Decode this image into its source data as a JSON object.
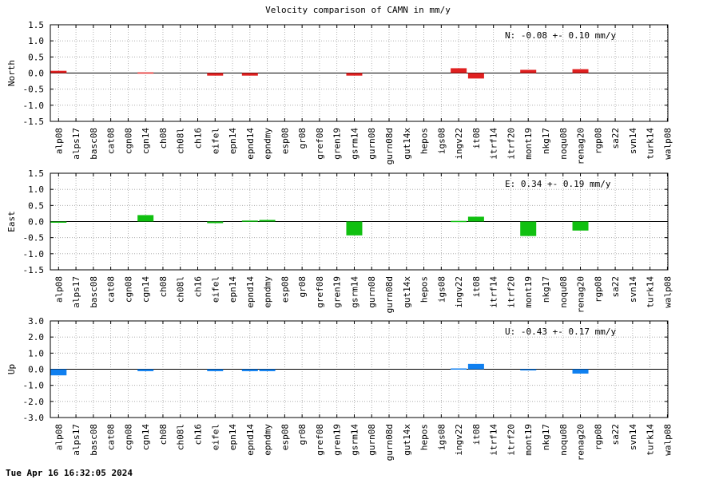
{
  "title": "Velocity comparison of CAMN in mm/y",
  "timestamp": "Tue Apr 16 16:32:05 2024",
  "chart_data": [
    {
      "type": "bar",
      "ylabel": "North",
      "ylim": [
        -1.5,
        1.5
      ],
      "yticks": [
        "1.5",
        "1.0",
        "0.5",
        "0.0",
        "-0.5",
        "-1.0",
        "-1.5"
      ],
      "grid": true,
      "color": "#e02020",
      "annotation": "N:  -0.08 +-  0.10 mm/y",
      "categories": [
        "alp08",
        "alps17",
        "basc08",
        "cat08",
        "cgn08",
        "cgn14",
        "ch08",
        "ch08l",
        "ch16",
        "eifel",
        "epn14",
        "epnd14",
        "epndmy",
        "esp08",
        "gr08",
        "gref08",
        "gren19",
        "gsrm14",
        "gurn08",
        "gurn08d",
        "gut14x",
        "hepos",
        "igs08",
        "ingv22",
        "it08",
        "itrf14",
        "itrf20",
        "mont19",
        "nkg17",
        "noqu08",
        "renag20",
        "rgp08",
        "sa22",
        "svn14",
        "turk14",
        "walp08"
      ],
      "values": [
        0.07,
        0,
        0,
        0,
        0,
        0.02,
        0,
        0,
        0,
        -0.08,
        0,
        -0.08,
        0,
        0,
        0,
        0,
        0,
        -0.08,
        0,
        0,
        0,
        0,
        0,
        0.15,
        -0.17,
        0,
        0,
        0.1,
        0,
        0,
        0.12,
        0,
        0,
        0,
        0,
        0
      ]
    },
    {
      "type": "bar",
      "ylabel": "East",
      "ylim": [
        -1.5,
        1.5
      ],
      "yticks": [
        "1.5",
        "1.0",
        "0.5",
        "0.0",
        "-0.5",
        "-1.0",
        "-1.5"
      ],
      "grid": true,
      "color": "#10c010",
      "annotation": "E:   0.34 +-  0.19 mm/y",
      "categories": [
        "alp08",
        "alps17",
        "basc08",
        "cat08",
        "cgn08",
        "cgn14",
        "ch08",
        "ch08l",
        "ch16",
        "eifel",
        "epn14",
        "epnd14",
        "epndmy",
        "esp08",
        "gr08",
        "gref08",
        "gren19",
        "gsrm14",
        "gurn08",
        "gurn08d",
        "gut14x",
        "hepos",
        "igs08",
        "ingv22",
        "it08",
        "itrf14",
        "itrf20",
        "mont19",
        "nkg17",
        "noqu08",
        "renag20",
        "rgp08",
        "sa22",
        "svn14",
        "turk14",
        "walp08"
      ],
      "values": [
        -0.03,
        0,
        0,
        0,
        0,
        0.2,
        0,
        0,
        0,
        -0.05,
        0,
        0.03,
        0.05,
        0,
        0,
        0,
        0,
        -0.43,
        0,
        0,
        0,
        0,
        0,
        0.02,
        0.15,
        0,
        0,
        -0.45,
        0,
        0,
        -0.28,
        0,
        0,
        0,
        0,
        0
      ]
    },
    {
      "type": "bar",
      "ylabel": "Up",
      "ylim": [
        -3.0,
        3.0
      ],
      "yticks": [
        "3.0",
        "2.0",
        "1.0",
        "0.0",
        "-1.0",
        "-2.0",
        "-3.0"
      ],
      "grid": true,
      "color": "#1080f0",
      "annotation": "U:  -0.43 +-  0.17 mm/y",
      "categories": [
        "alp08",
        "alps17",
        "basc08",
        "cat08",
        "cgn08",
        "cgn14",
        "ch08",
        "ch08l",
        "ch16",
        "eifel",
        "epn14",
        "epnd14",
        "epndmy",
        "esp08",
        "gr08",
        "gref08",
        "gren19",
        "gsrm14",
        "gurn08",
        "gurn08d",
        "gut14x",
        "hepos",
        "igs08",
        "ingv22",
        "it08",
        "itrf14",
        "itrf20",
        "mont19",
        "nkg17",
        "noqu08",
        "renag20",
        "rgp08",
        "sa22",
        "svn14",
        "turk14",
        "walp08"
      ],
      "values": [
        -0.38,
        0,
        0,
        0,
        0,
        -0.12,
        0,
        0,
        0,
        -0.12,
        0,
        -0.12,
        -0.12,
        0,
        0,
        0,
        0,
        0,
        0,
        0,
        0,
        0,
        0,
        0.05,
        0.33,
        0,
        0,
        -0.05,
        0,
        0,
        -0.27,
        0,
        0,
        0,
        0,
        0
      ]
    }
  ]
}
